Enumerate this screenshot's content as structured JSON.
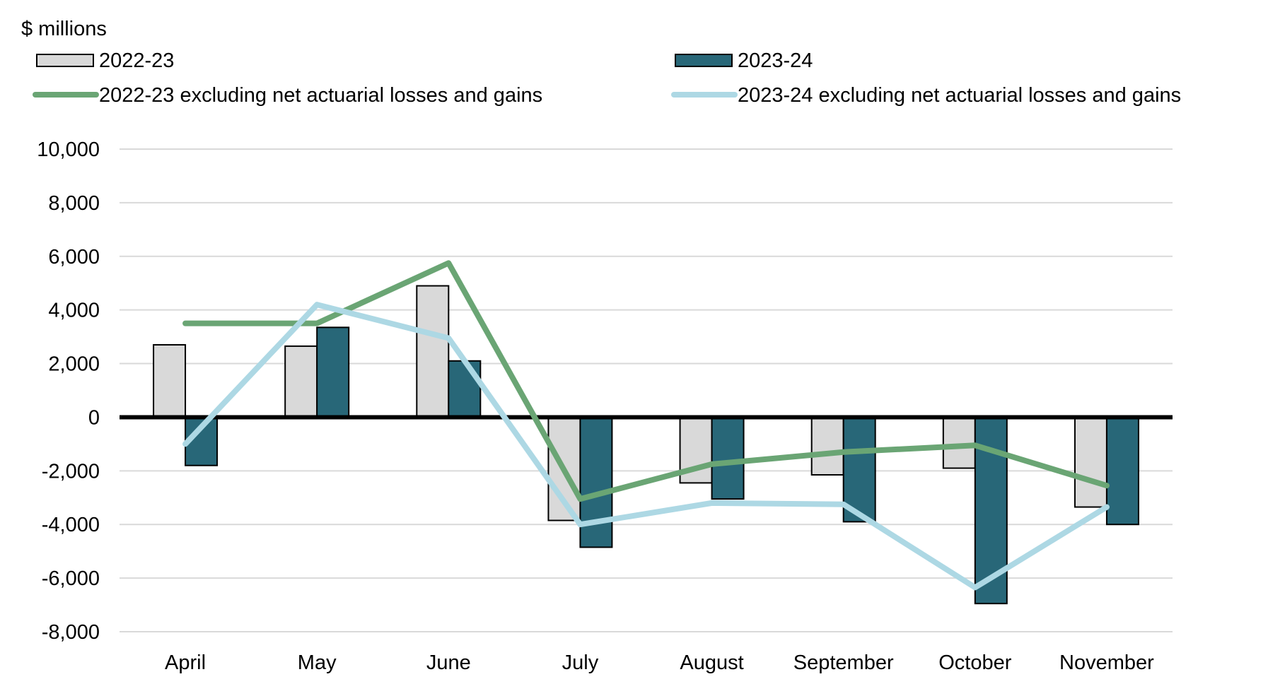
{
  "chart_data": {
    "type": "bar",
    "title": "",
    "unit_label": "$ millions",
    "xlabel": "",
    "ylabel": "$ millions",
    "ylim": [
      -8000,
      10000
    ],
    "yticks": [
      10000,
      8000,
      6000,
      4000,
      2000,
      0,
      -2000,
      -4000,
      -6000,
      -8000
    ],
    "ytick_labels": [
      "10,000",
      "8,000",
      "6,000",
      "4,000",
      "2,000",
      "0",
      "-2,000",
      "-4,000",
      "-6,000",
      "-8,000"
    ],
    "grid": true,
    "legend_position": "top",
    "categories": [
      "April",
      "May",
      "June",
      "July",
      "August",
      "September",
      "October",
      "November"
    ],
    "series": [
      {
        "name": "2022-23",
        "kind": "bar",
        "color": "#d9d9d9",
        "values": [
          2700,
          2650,
          4900,
          -3850,
          -2450,
          -2150,
          -1900,
          -3350
        ]
      },
      {
        "name": "2023-24",
        "kind": "bar",
        "color": "#286778",
        "values": [
          -1800,
          3350,
          2100,
          -4850,
          -3050,
          -3900,
          -6950,
          -4000
        ]
      },
      {
        "name": "2022-23 excluding net actuarial losses and gains",
        "kind": "line",
        "color": "#6aa574",
        "values": [
          3500,
          3500,
          5750,
          -3050,
          -1750,
          -1300,
          -1050,
          -2550
        ]
      },
      {
        "name": "2023-24 excluding net actuarial losses and gains",
        "kind": "line",
        "color": "#add8e4",
        "values": [
          -1000,
          4200,
          2950,
          -4000,
          -3200,
          -3250,
          -6350,
          -3350
        ]
      }
    ]
  }
}
